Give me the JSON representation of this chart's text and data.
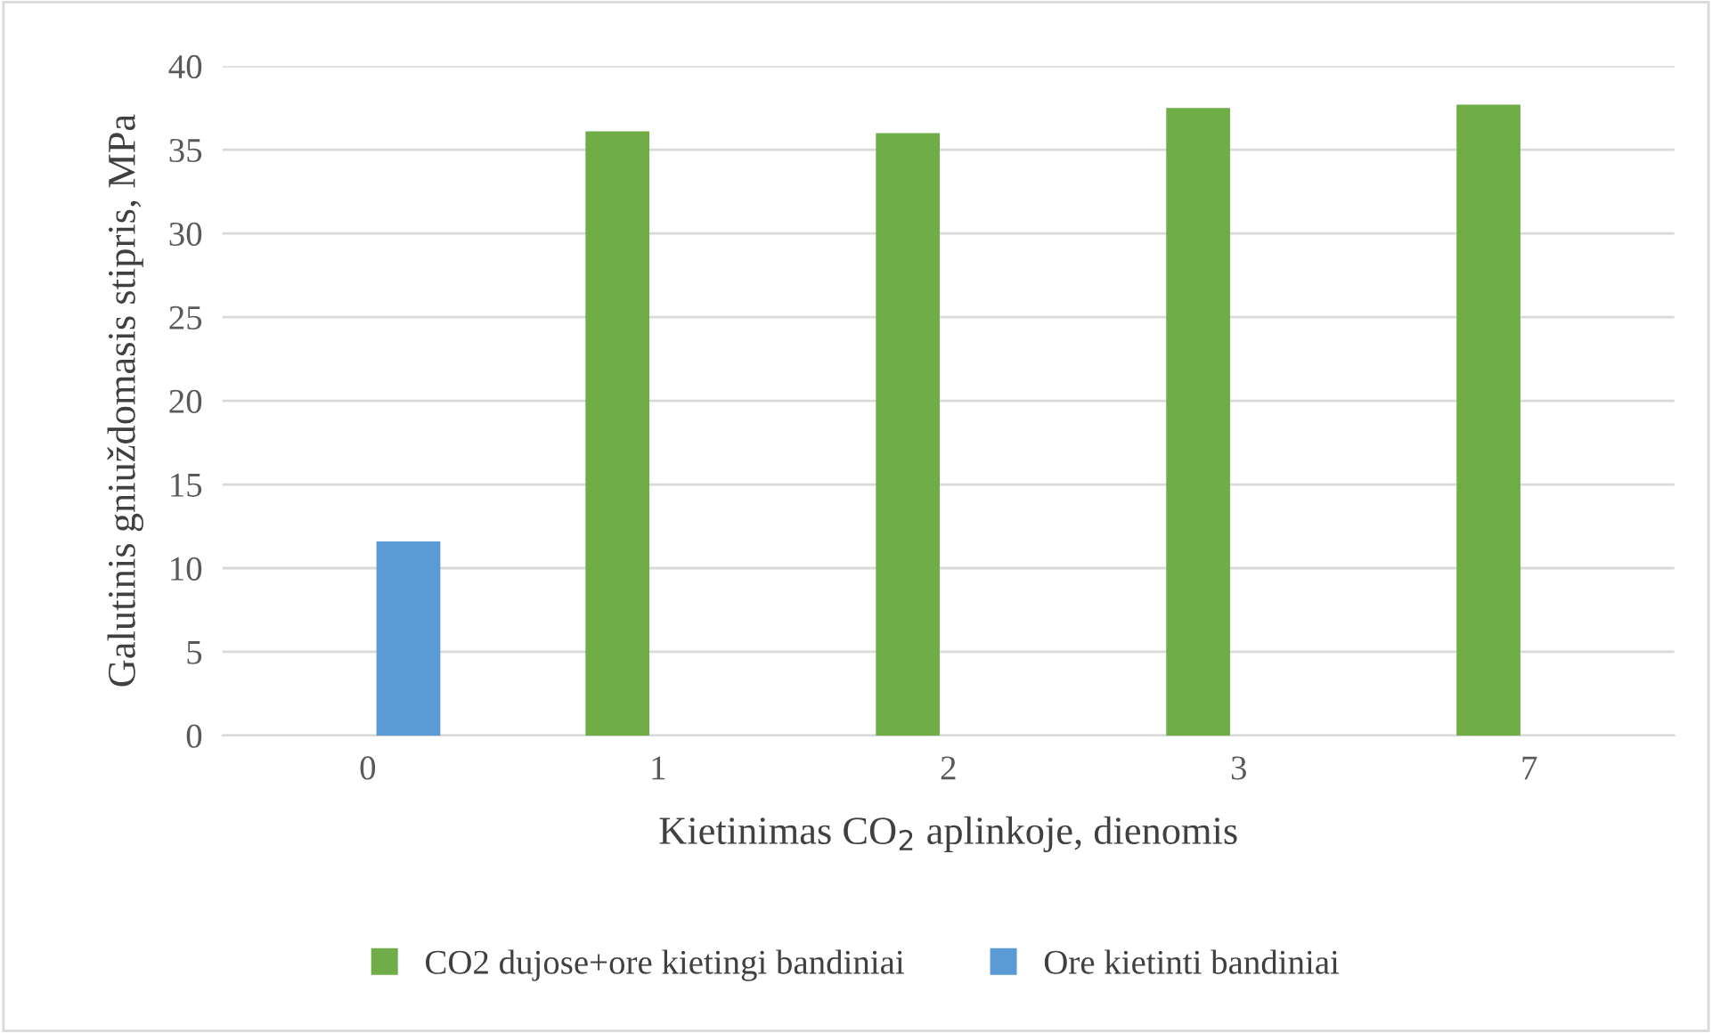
{
  "chart_data": {
    "type": "bar",
    "xlabel": "Kietinimas CO$_{2}$ aplinkoje, dienomis",
    "ylabel": "Galutinis gniuždomasis stipris, MPa",
    "categories": [
      "0",
      "1",
      "2",
      "3",
      "7"
    ],
    "series": [
      {
        "name": "CO2 dujose+ore kietingi bandiniai",
        "color": "#70ad47",
        "values": [
          null,
          36.1,
          36.0,
          37.5,
          37.7
        ]
      },
      {
        "name": "Ore kietinti bandiniai",
        "color": "#5b9bd5",
        "values": [
          11.6,
          null,
          null,
          null,
          null
        ]
      }
    ],
    "ylim": [
      0,
      40
    ],
    "yticks": [
      0,
      5,
      10,
      15,
      20,
      25,
      30,
      35,
      40
    ],
    "grid": "y",
    "legend": "bottom"
  }
}
